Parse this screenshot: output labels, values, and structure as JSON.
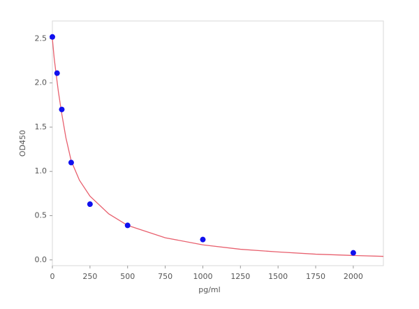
{
  "chart_data": {
    "type": "scatter",
    "xlabel": "pg/ml",
    "ylabel": "OD450",
    "xlim": [
      0,
      2200
    ],
    "ylim": [
      -0.065,
      2.7
    ],
    "xticks": [
      0,
      250,
      500,
      750,
      1000,
      1250,
      1500,
      1750,
      2000
    ],
    "yticks": [
      {
        "value": 0,
        "label": "0.0"
      },
      {
        "value": 0.5,
        "label": "0.5"
      },
      {
        "value": 1,
        "label": "1.0"
      },
      {
        "value": 1.5,
        "label": "1.5"
      },
      {
        "value": 2,
        "label": "2.0"
      },
      {
        "value": 2.5,
        "label": "2.5"
      }
    ],
    "series": [
      {
        "type": "scatter",
        "color": "#1010ee",
        "x": [
          0,
          31.25,
          62.5,
          125,
          250,
          500,
          1000,
          2000
        ],
        "values": [
          2.52,
          2.11,
          1.7,
          1.1,
          0.63,
          0.39,
          0.23,
          0.08
        ]
      },
      {
        "type": "line",
        "color": "#e8606e",
        "x": [
          0,
          12,
          25,
          40,
          62.5,
          90,
          125,
          180,
          250,
          375,
          500,
          750,
          1000,
          1250,
          1500,
          1750,
          2000,
          2200
        ],
        "values": [
          2.5,
          2.28,
          2.1,
          1.9,
          1.65,
          1.38,
          1.12,
          0.9,
          0.72,
          0.52,
          0.39,
          0.25,
          0.17,
          0.12,
          0.09,
          0.065,
          0.05,
          0.04
        ]
      }
    ]
  }
}
